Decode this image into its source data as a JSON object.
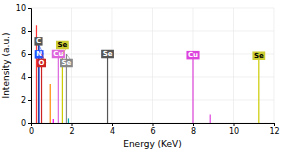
{
  "chart_data": {
    "type": "stem",
    "xlabel": "Energy (KeV)",
    "ylabel": "Intensity (a.u.)",
    "xlim": [
      0,
      12
    ],
    "ylim": [
      0,
      10
    ],
    "xticks": [
      0,
      2,
      4,
      6,
      8,
      10,
      12
    ],
    "yticks": [
      0,
      2,
      4,
      6,
      8,
      10
    ],
    "grid": true,
    "x": [
      0.27,
      0.37,
      0.4,
      0.52,
      0.95,
      1.1,
      1.35,
      1.55,
      1.75,
      1.85,
      3.78,
      8.0,
      8.85,
      11.25
    ],
    "values": [
      8.5,
      7.15,
      6.75,
      6.0,
      3.4,
      0.35,
      6.0,
      6.0,
      6.0,
      0.4,
      6.0,
      5.9,
      0.75,
      5.85
    ],
    "colors": [
      "#ff3333",
      "#333333",
      "#2255ff",
      "#cc2222",
      "#ff8800",
      "#ee00ee",
      "#dd66dd",
      "#cccc00",
      "#888888",
      "#00aaaa",
      "#555555",
      "#dd44dd",
      "#dd44dd",
      "#cccc00"
    ],
    "annotations": [
      {
        "text": "C",
        "x": 0.37,
        "y": 7.1,
        "color": "#555555"
      },
      {
        "text": "N",
        "x": 0.4,
        "y": 6.75,
        "color": "#2255ff"
      },
      {
        "text": "O",
        "x": 0.52,
        "y": 6.0,
        "color": "#cc2222"
      },
      {
        "text": "Cu",
        "x": 1.35,
        "y": 6.0,
        "color": "#dd66dd"
      },
      {
        "text": "Se",
        "x": 1.55,
        "y": 6.0,
        "color": "#cccc33"
      },
      {
        "text": "Se",
        "x": 1.75,
        "y": 6.0,
        "color": "#888888"
      },
      {
        "text": "Se",
        "x": 3.78,
        "y": 6.0,
        "color": "#555555"
      },
      {
        "text": "Cu",
        "x": 8.0,
        "y": 5.9,
        "color": "#dd44dd"
      },
      {
        "text": "Se",
        "x": 11.25,
        "y": 5.85,
        "color": "#cccc33"
      }
    ]
  }
}
